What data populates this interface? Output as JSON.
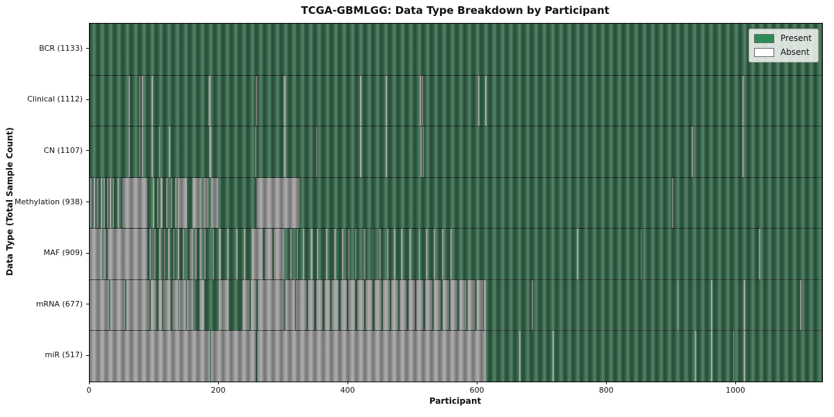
{
  "chart_data": {
    "type": "heatmap",
    "title": "TCGA-GBMLGG: Data Type Breakdown by Participant",
    "xlabel": "Participant",
    "ylabel": "Data Type (Total Sample Count)",
    "xlim": [
      0,
      1133
    ],
    "xticks": [
      "0",
      "200",
      "400",
      "600",
      "800",
      "1000"
    ],
    "xtick_values": [
      0,
      200,
      400,
      600,
      800,
      1000
    ],
    "grid": false,
    "legend": {
      "position": "upper right",
      "items": [
        {
          "label": "Present",
          "color": "#2e8b57"
        },
        {
          "label": "Absent",
          "color": "#ffffff"
        }
      ]
    },
    "colors": {
      "present": "#35684a",
      "absent": "#9c9c9c",
      "row_divider": "#141414"
    },
    "rows": [
      {
        "name": "BCR",
        "label": "BCR (1133)",
        "total_samples": 1133,
        "base": "present",
        "present_marks": [],
        "absent_marks": []
      },
      {
        "name": "Clinical",
        "label": "Clinical (1112)",
        "total_samples": 1112,
        "base": "present",
        "present_marks": [],
        "absent_marks": [
          [
            60,
            62
          ],
          [
            76,
            78
          ],
          [
            81,
            83
          ],
          [
            96,
            98
          ],
          [
            184,
            187
          ],
          [
            257,
            259
          ],
          [
            300,
            303
          ],
          [
            418,
            420
          ],
          [
            458,
            460
          ],
          [
            511,
            513
          ],
          [
            514,
            516
          ],
          [
            601,
            603
          ],
          [
            612,
            614
          ],
          [
            1009,
            1011
          ]
        ]
      },
      {
        "name": "CN",
        "label": "CN (1107)",
        "total_samples": 1107,
        "base": "present",
        "present_marks": [],
        "absent_marks": [
          [
            60,
            62
          ],
          [
            76,
            78
          ],
          [
            81,
            83
          ],
          [
            96,
            98
          ],
          [
            107,
            109
          ],
          [
            123,
            125
          ],
          [
            185,
            188
          ],
          [
            256,
            258
          ],
          [
            300,
            303
          ],
          [
            350,
            352
          ],
          [
            418,
            420
          ],
          [
            458,
            460
          ],
          [
            512,
            514
          ],
          [
            515,
            517
          ],
          [
            931,
            933
          ],
          [
            1009,
            1011
          ]
        ]
      },
      {
        "name": "Methylation",
        "label": "Methylation (938)",
        "total_samples": 938,
        "base": "present",
        "present_marks": [],
        "absent_marks": [
          [
            0,
            3
          ],
          [
            6,
            9
          ],
          [
            11,
            14
          ],
          [
            17,
            19
          ],
          [
            22,
            24
          ],
          [
            27,
            29
          ],
          [
            31,
            33
          ],
          [
            36,
            38
          ],
          [
            43,
            45
          ],
          [
            50,
            89
          ],
          [
            98,
            100
          ],
          [
            104,
            106
          ],
          [
            110,
            113
          ],
          [
            118,
            120
          ],
          [
            126,
            128
          ],
          [
            132,
            134
          ],
          [
            136,
            150
          ],
          [
            159,
            173
          ],
          [
            176,
            184
          ],
          [
            188,
            199
          ],
          [
            258,
            325
          ],
          [
            901,
            903
          ]
        ]
      },
      {
        "name": "MAF",
        "label": "MAF (909)",
        "total_samples": 909,
        "base": "present",
        "present_marks": [],
        "absent_marks": [
          [
            0,
            19
          ],
          [
            21,
            26
          ],
          [
            28,
            89
          ],
          [
            92,
            95
          ],
          [
            100,
            102
          ],
          [
            107,
            110
          ],
          [
            115,
            117
          ],
          [
            122,
            124
          ],
          [
            129,
            131
          ],
          [
            137,
            139
          ],
          [
            144,
            146
          ],
          [
            155,
            160
          ],
          [
            163,
            166
          ],
          [
            170,
            173
          ],
          [
            177,
            180
          ],
          [
            190,
            192
          ],
          [
            200,
            203
          ],
          [
            213,
            215
          ],
          [
            227,
            229
          ],
          [
            239,
            241
          ],
          [
            250,
            268
          ],
          [
            271,
            283
          ],
          [
            285,
            301
          ],
          [
            310,
            313
          ],
          [
            320,
            322
          ],
          [
            330,
            332
          ],
          [
            342,
            345
          ],
          [
            352,
            354
          ],
          [
            365,
            368
          ],
          [
            378,
            381
          ],
          [
            390,
            392
          ],
          [
            400,
            402
          ],
          [
            411,
            413
          ],
          [
            424,
            427
          ],
          [
            437,
            439
          ],
          [
            448,
            450
          ],
          [
            460,
            462
          ],
          [
            471,
            473
          ],
          [
            482,
            484
          ],
          [
            495,
            497
          ],
          [
            509,
            511
          ],
          [
            520,
            522
          ],
          [
            532,
            534
          ],
          [
            545,
            547
          ],
          [
            558,
            560
          ],
          [
            754,
            756
          ],
          [
            852,
            854
          ],
          [
            1035,
            1037
          ]
        ]
      },
      {
        "name": "mRNA",
        "label": "mRNA (677)",
        "total_samples": 677,
        "base": "absent",
        "present_marks": [
          [
            30,
            32
          ],
          [
            55,
            57
          ],
          [
            92,
            95
          ],
          [
            103,
            106
          ],
          [
            112,
            114
          ],
          [
            125,
            128
          ],
          [
            136,
            138
          ],
          [
            148,
            150
          ],
          [
            160,
            170
          ],
          [
            177,
            200
          ],
          [
            215,
            236
          ],
          [
            247,
            249
          ],
          [
            258,
            260
          ],
          [
            300,
            303
          ],
          [
            317,
            319
          ],
          [
            335,
            338
          ],
          [
            347,
            350
          ],
          [
            360,
            363
          ],
          [
            372,
            374
          ],
          [
            385,
            388
          ],
          [
            398,
            400
          ],
          [
            411,
            414
          ],
          [
            425,
            427
          ],
          [
            438,
            441
          ],
          [
            452,
            454
          ],
          [
            464,
            467
          ],
          [
            477,
            479
          ],
          [
            490,
            493
          ],
          [
            503,
            505
          ],
          [
            516,
            519
          ],
          [
            530,
            532
          ],
          [
            543,
            546
          ],
          [
            556,
            558
          ],
          [
            569,
            572
          ],
          [
            583,
            585
          ],
          [
            596,
            599
          ],
          [
            608,
            610
          ],
          [
            613,
            1133
          ]
        ],
        "absent_marks": [
          [
            684,
            686
          ],
          [
            909,
            911
          ],
          [
            961,
            963
          ],
          [
            1012,
            1014
          ],
          [
            1099,
            1101
          ]
        ]
      },
      {
        "name": "miR",
        "label": "miR (517)",
        "total_samples": 517,
        "base": "absent",
        "present_marks": [
          [
            186,
            188
          ],
          [
            257,
            259
          ],
          [
            613,
            1133
          ]
        ],
        "absent_marks": [
          [
            664,
            666
          ],
          [
            716,
            718
          ],
          [
            936,
            938
          ],
          [
            961,
            963
          ],
          [
            995,
            997
          ],
          [
            1012,
            1014
          ]
        ]
      }
    ]
  }
}
